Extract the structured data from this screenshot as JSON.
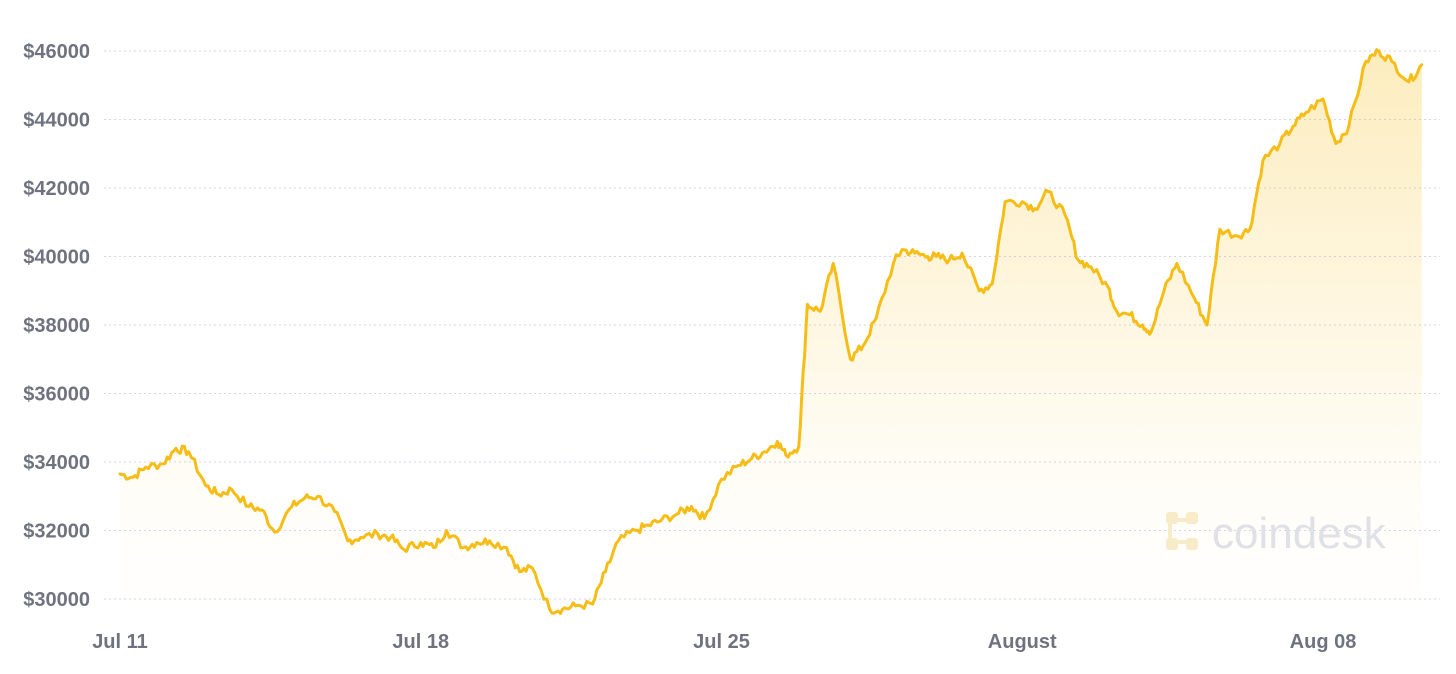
{
  "chart_data": {
    "type": "area",
    "y_tick_labels": [
      "$30000",
      "$32000",
      "$34000",
      "$36000",
      "$38000",
      "$40000",
      "$42000",
      "$44000",
      "$46000"
    ],
    "y_tick_values": [
      30000,
      32000,
      34000,
      36000,
      38000,
      40000,
      42000,
      44000,
      46000
    ],
    "ylim": [
      29400,
      46800
    ],
    "x_tick_labels": [
      "Jul 11",
      "Jul 18",
      "Jul 25",
      "August",
      "Aug 08"
    ],
    "x_tick_days": [
      0,
      7,
      14,
      21,
      28
    ],
    "xlim": [
      0,
      30.3
    ],
    "grid": "horizontal",
    "series": [
      {
        "color": "#f6bd16",
        "x": [
          0,
          0.3,
          0.6,
          1.0,
          1.3,
          1.6,
          2.0,
          2.3,
          2.6,
          3.0,
          3.3,
          3.6,
          4.0,
          4.3,
          4.6,
          5.0,
          5.3,
          5.6,
          6.0,
          6.3,
          6.6,
          7.0,
          7.3,
          7.6,
          8.0,
          8.3,
          8.6,
          9.0,
          9.3,
          9.6,
          10.0,
          10.3,
          10.6,
          11.0,
          11.3,
          11.6,
          12.0,
          12.3,
          12.6,
          13.0,
          13.3,
          13.6,
          14.0,
          14.4,
          14.7,
          15.0,
          15.3,
          15.5,
          15.8,
          16.0,
          16.3,
          16.6,
          17.0,
          17.3,
          17.6,
          18.0,
          18.2,
          18.5,
          18.8,
          19.0,
          19.3,
          19.6,
          20.0,
          20.3,
          20.6,
          21.0,
          21.3,
          21.6,
          22.0,
          22.3,
          22.6,
          23.0,
          23.2,
          23.5,
          23.8,
          24.0,
          24.3,
          24.6,
          25.0,
          25.3,
          25.6,
          26.0,
          26.3,
          26.6,
          27.0,
          27.3,
          27.6,
          28.0,
          28.3,
          28.6,
          29.0,
          29.3,
          29.6,
          30.0,
          30.3
        ],
        "y": [
          33650,
          33550,
          33850,
          33950,
          34400,
          34300,
          33300,
          33050,
          33200,
          32700,
          32600,
          31950,
          32700,
          32950,
          33000,
          32550,
          31700,
          31800,
          31900,
          31800,
          31450,
          31650,
          31500,
          32000,
          31500,
          31650,
          31700,
          31500,
          30800,
          30900,
          29700,
          29700,
          29800,
          29850,
          30800,
          31700,
          32000,
          32150,
          32300,
          32500,
          32700,
          32350,
          33500,
          33900,
          34100,
          34300,
          34600,
          34200,
          34450,
          38600,
          38400,
          39800,
          37000,
          37400,
          38200,
          39800,
          40200,
          40100,
          40000,
          40000,
          39900,
          40100,
          39000,
          39200,
          41600,
          41600,
          41400,
          41900,
          41200,
          39900,
          39700,
          39100,
          38400,
          38300,
          38000,
          37800,
          39000,
          39800,
          38800,
          38000,
          40800,
          40600,
          40800,
          42800,
          43300,
          43800,
          44200,
          44600,
          43300,
          43800,
          45700,
          46000,
          45700,
          45100,
          45600
        ]
      }
    ]
  },
  "watermark": {
    "icon": "coindesk-logo-icon",
    "text": "coindesk"
  }
}
